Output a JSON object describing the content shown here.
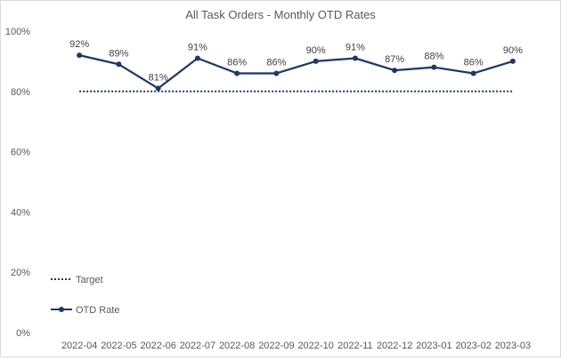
{
  "chart_data": {
    "type": "line",
    "title": "All Task Orders - Monthly OTD Rates",
    "xlabel": "",
    "ylabel": "",
    "categories": [
      "2022-04",
      "2022-05",
      "2022-06",
      "2022-07",
      "2022-08",
      "2022-09",
      "2022-10",
      "2022-11",
      "2022-12",
      "2023-01",
      "2023-02",
      "2023-03"
    ],
    "series": [
      {
        "name": "OTD Rate",
        "values": [
          92,
          89,
          81,
          91,
          86,
          86,
          90,
          91,
          87,
          88,
          86,
          90
        ],
        "data_labels": [
          "92%",
          "89%",
          "81%",
          "91%",
          "86%",
          "86%",
          "90%",
          "91%",
          "87%",
          "88%",
          "86%",
          "90%"
        ],
        "color": "#1f3864",
        "style": "solid-with-markers"
      },
      {
        "name": "Target",
        "values": [
          80,
          80,
          80,
          80,
          80,
          80,
          80,
          80,
          80,
          80,
          80,
          80
        ],
        "color": "#1f3864",
        "style": "dotted"
      }
    ],
    "ylim": [
      0,
      100
    ],
    "yticks": [
      0,
      20,
      40,
      60,
      80,
      100
    ],
    "ytick_labels": [
      "0%",
      "20%",
      "40%",
      "60%",
      "80%",
      "100%"
    ],
    "grid": false,
    "legend_position": "bottom-left"
  }
}
